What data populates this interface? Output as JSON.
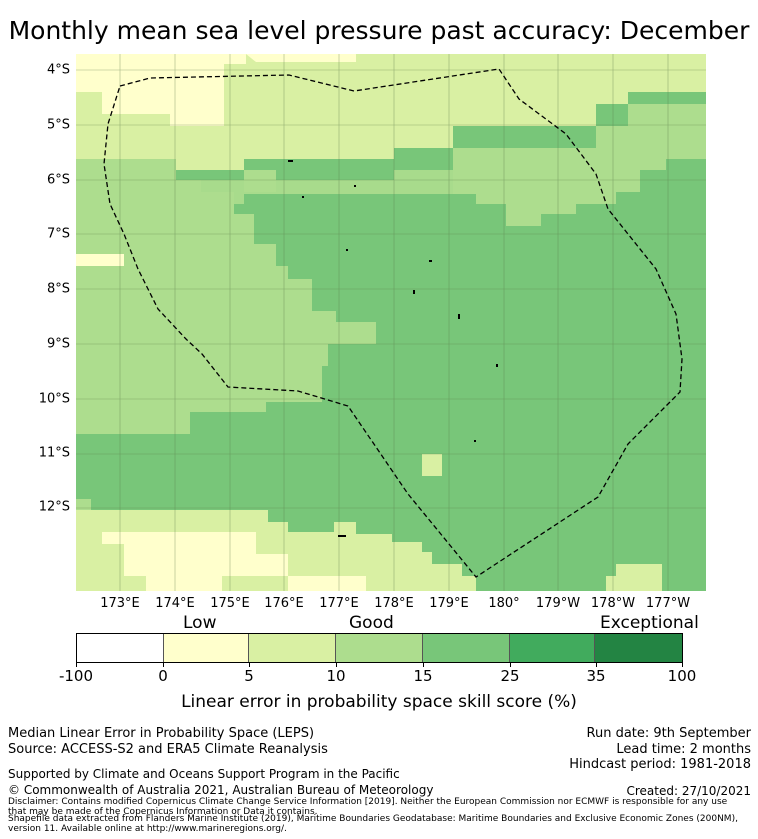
{
  "title": "Monthly mean sea level pressure past accuracy: December",
  "map": {
    "lat_labels": [
      "4°S",
      "5°S",
      "6°S",
      "7°S",
      "8°S",
      "9°S",
      "10°S",
      "11°S",
      "12°S"
    ],
    "lon_labels": [
      "173°E",
      "174°E",
      "175°E",
      "176°E",
      "177°E",
      "178°E",
      "179°E",
      "180°",
      "179°W",
      "178°W",
      "177°W"
    ],
    "outline": "Dashed boundary: maritime boundary (EEZ)"
  },
  "colorbar": {
    "categories": [
      "Low",
      "Good",
      "Exceptional"
    ],
    "ticks": [
      "-100",
      "0",
      "5",
      "10",
      "15",
      "25",
      "35",
      "100"
    ],
    "colors": [
      "#ffffff",
      "#ffffcc",
      "#d9f0a3",
      "#addd8e",
      "#78c679",
      "#41ab5d",
      "#238443"
    ],
    "label": "Linear error in probability space skill score (%)"
  },
  "footer": {
    "line1": "Median Linear Error in Probability Space (LEPS)",
    "line2": "Source: ACCESS-S2 and ERA5 Climate Reanalysis",
    "run_date": "Run date: 9th September",
    "lead_time": "Lead time: 2 months",
    "hindcast": "Hindcast period: 1981-2018",
    "supported": "Supported by Climate and Oceans Support Program in the Pacific",
    "copyright": "© Commonwealth of Australia 2021, Australian Bureau of Meteorology",
    "created": "Created: 27/10/2021",
    "disclaimer1": "Disclaimer: Contains modified Copernicus Climate Change Service Information [2019]. Neither the European Commission nor ECMWF is responsible for any use",
    "disclaimer2": "that may be made of the Copernicus Information or Data it contains.",
    "shapefile1": "Shapefile data extracted from Flanders Marine Institute (2019), Maritime Boundaries Geodatabase: Maritime Boundaries and Exclusive Economic Zones (200NM),",
    "shapefile2": "version 11. Available online at http://www.marineregions.org/."
  }
}
